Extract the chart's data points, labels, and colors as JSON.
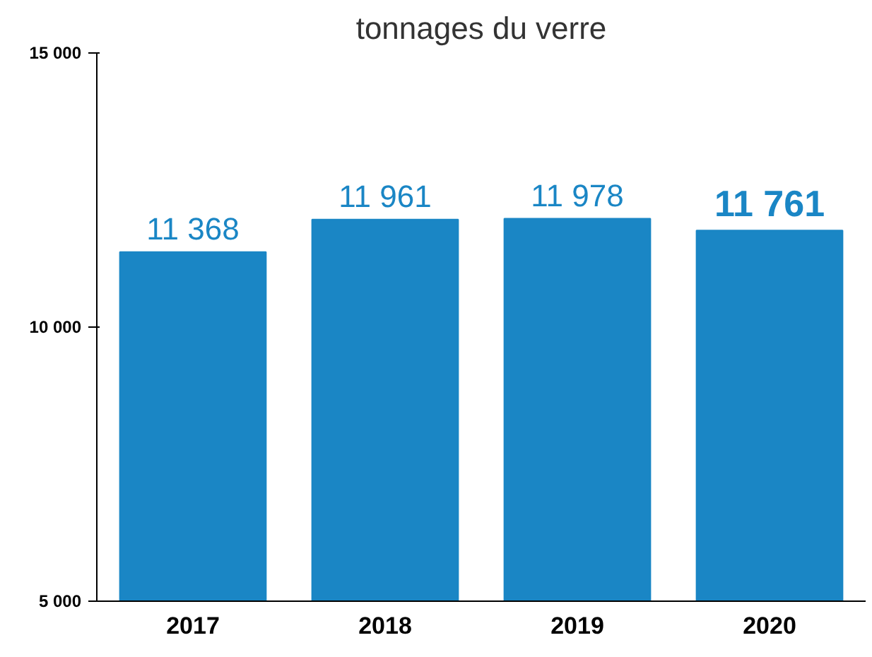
{
  "chart_data": {
    "type": "bar",
    "title": "tonnages du verre",
    "categories": [
      "2017",
      "2018",
      "2019",
      "2020"
    ],
    "values": [
      11368,
      11961,
      11978,
      11761
    ],
    "value_labels": [
      "11 368",
      "11 961",
      "11 978",
      "11 761"
    ],
    "color": "#1a86c5",
    "ylim": [
      5000,
      15000
    ],
    "yticks": [
      {
        "value": 5000,
        "label": "5 000"
      },
      {
        "value": 10000,
        "label": "10 000"
      },
      {
        "value": 15000,
        "label": "15 000"
      }
    ],
    "grid": false
  }
}
